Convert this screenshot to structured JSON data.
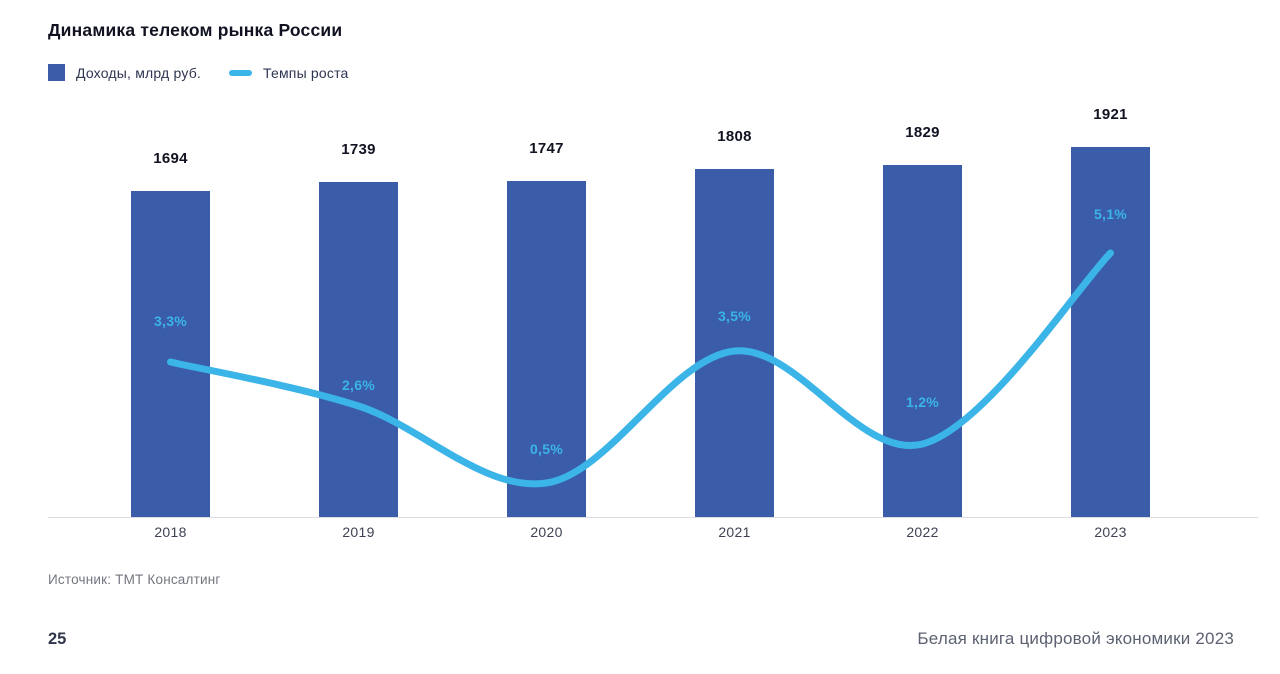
{
  "header": {
    "title": "Динамика телеком рынка России"
  },
  "legend": {
    "items": [
      {
        "label": "Доходы, млрд руб.",
        "swatch": "square-icon",
        "color": "#3A5CA9"
      },
      {
        "label": "Темпы роста",
        "swatch": "line-icon",
        "color": "#3BB4E7"
      }
    ]
  },
  "chart_data": {
    "type": "bar",
    "title": "Динамика телеком рынка России",
    "categories": [
      "2018",
      "2019",
      "2020",
      "2021",
      "2022",
      "2023"
    ],
    "series": [
      {
        "name": "Доходы, млрд руб.",
        "type": "bar",
        "color": "#3A5CA9",
        "values": [
          1694,
          1739,
          1747,
          1808,
          1829,
          1921
        ],
        "data_labels": [
          "1694",
          "1739",
          "1747",
          "1808",
          "1829",
          "1921"
        ]
      },
      {
        "name": "Темпы роста",
        "type": "line",
        "color": "#3BB4E7",
        "unit": "%",
        "values": [
          3.3,
          2.6,
          0.5,
          3.5,
          1.2,
          5.1
        ],
        "data_labels": [
          "3,3%",
          "2,6%",
          "0,5%",
          "3,5%",
          "1,2%",
          "5,1%"
        ]
      }
    ],
    "ylim": [
      0,
      1921
    ],
    "grid": false,
    "legend_position": "top-left",
    "x_axis_line": true
  },
  "source": {
    "text": "Источник: ТМТ Консалтинг"
  },
  "footer": {
    "page_number": "25",
    "book_title": "Белая книга цифровой экономики 2023"
  }
}
